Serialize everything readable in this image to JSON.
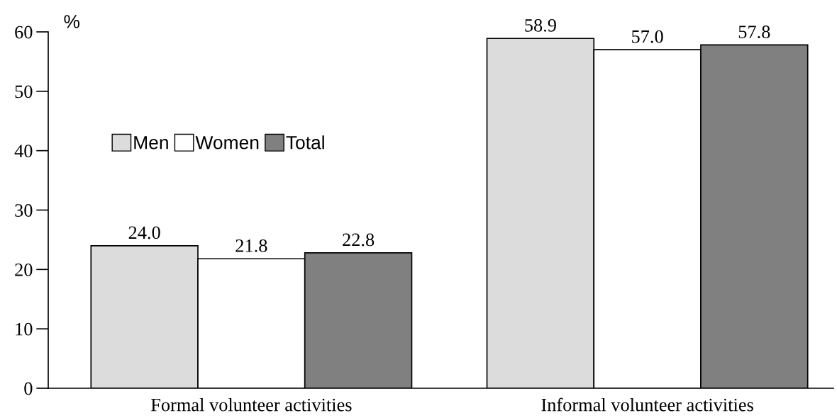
{
  "chart_data": {
    "type": "bar",
    "ylabel": "%",
    "categories": [
      "Formal volunteer activities",
      "Informal volunteer activities"
    ],
    "series": [
      {
        "name": "Men",
        "color": "#dcdcdc",
        "values": [
          24.0,
          58.9
        ],
        "value_labels": [
          "24.0",
          "58.9"
        ]
      },
      {
        "name": "Women",
        "color": "#ffffff",
        "values": [
          21.8,
          57.0
        ],
        "value_labels": [
          "21.8",
          "57.0"
        ]
      },
      {
        "name": "Total",
        "color": "#808080",
        "values": [
          22.8,
          57.8
        ],
        "value_labels": [
          "22.8",
          "57.8"
        ]
      }
    ],
    "ylim": [
      0,
      60
    ],
    "yticks": [
      0,
      10,
      20,
      30,
      40,
      50,
      60
    ],
    "legend": "top left",
    "grid": false
  }
}
